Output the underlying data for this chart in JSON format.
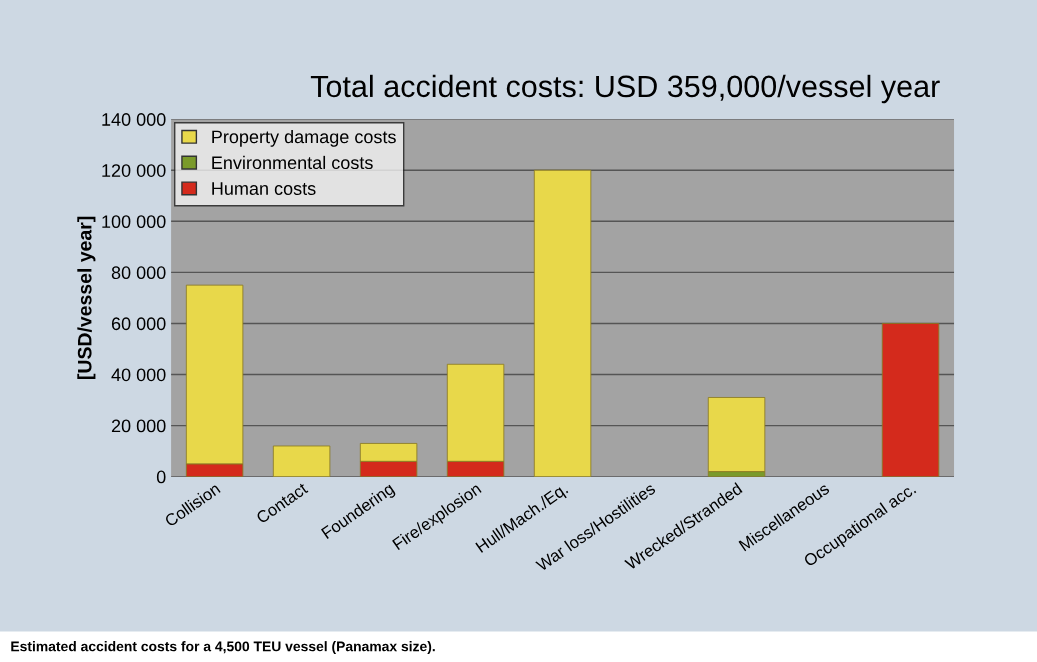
{
  "chart_data": {
    "type": "bar",
    "stacked": true,
    "title": "Total accident costs: USD 359,000/vessel year",
    "ylabel": "[USD/vessel year]",
    "categories": [
      "Collision",
      "Contact",
      "Foundering",
      "Fire/explosion",
      "Hull/Mach./Eq.",
      "War loss/Hostilities",
      "Wrecked/Stranded",
      "Miscellaneous",
      "Occupational acc."
    ],
    "series": [
      {
        "name": "Human costs",
        "color": "#d42a1c",
        "values": [
          5000,
          0,
          6000,
          6000,
          0,
          0,
          0,
          0,
          60000
        ]
      },
      {
        "name": "Environmental costs",
        "color": "#7a9a2a",
        "values": [
          0,
          0,
          0,
          0,
          0,
          0,
          2000,
          0,
          0
        ]
      },
      {
        "name": "Property damage costs",
        "color": "#e8d84a",
        "values": [
          70000,
          12000,
          7000,
          38000,
          120000,
          0,
          29000,
          0,
          0
        ]
      }
    ],
    "ylim": [
      0,
      140000
    ],
    "yticks": [
      {
        "value": 0,
        "label": "0"
      },
      {
        "value": 20000,
        "label": "20 000"
      },
      {
        "value": 40000,
        "label": "40 000"
      },
      {
        "value": 60000,
        "label": "60 000"
      },
      {
        "value": 80000,
        "label": "80 000"
      },
      {
        "value": 100000,
        "label": "100 000"
      },
      {
        "value": 120000,
        "label": "120 000"
      },
      {
        "value": 140000,
        "label": "140 000"
      }
    ],
    "grid": "y",
    "legend": "top left",
    "annotations": [
      "Estimated accident costs for a 4,500 TEU vessel (Panamax size)."
    ]
  }
}
